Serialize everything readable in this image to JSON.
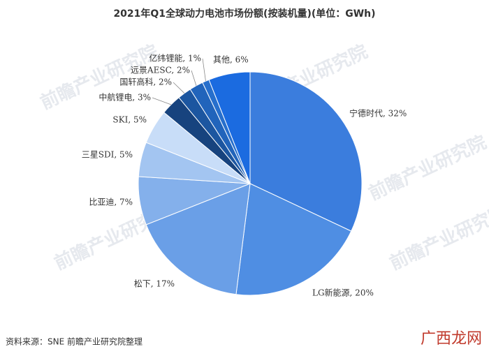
{
  "chart_data": {
    "type": "pie",
    "title": "2021年Q1全球动力电池市场份额(按装机量)(单位：GWh)",
    "categories": [
      "宁德时代, 32%",
      "LG新能源, 20%",
      "松下, 17%",
      "比亚迪, 7%",
      "三星SDI, 5%",
      "SKI, 5%",
      "中航锂电, 3%",
      "国轩高科, 2%",
      "远景AESC, 2%",
      "亿纬锂能, 1%",
      "其他, 6%"
    ],
    "values": [
      32,
      20,
      17,
      7,
      5,
      5,
      3,
      2,
      2,
      1,
      6
    ],
    "colors": [
      "#3b7ddd",
      "#4f8ee3",
      "#6a9fe7",
      "#84b0eb",
      "#a3c5f1",
      "#c8ddf8",
      "#17437e",
      "#1c56a0",
      "#2164bb",
      "#276fcc",
      "#1b6be0"
    ],
    "source": "资料来源：SNE 前瞻产业研究院整理",
    "watermark": "前瞻产业研究院",
    "logo": "广西龙网"
  }
}
